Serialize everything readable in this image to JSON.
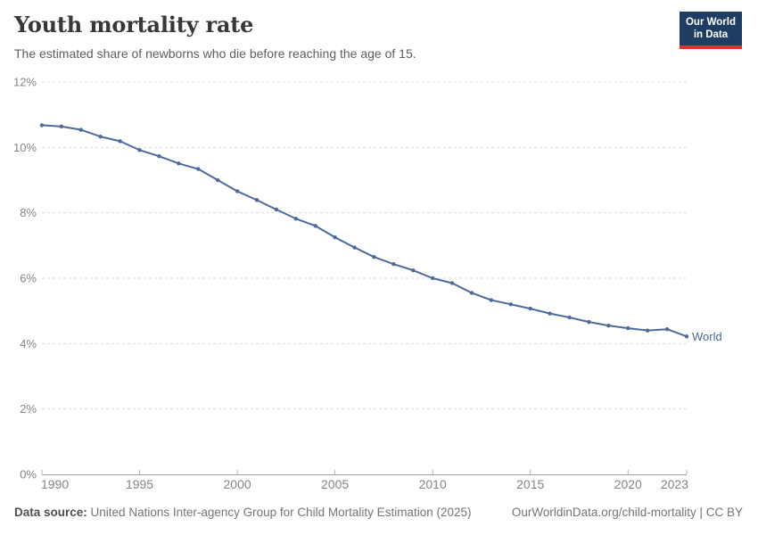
{
  "header": {
    "title": "Youth mortality rate",
    "subtitle": "The estimated share of newborns who die before reaching the age of 15.",
    "logo": {
      "line1": "Our World",
      "line2": "in Data",
      "bg_color": "#1d3d63",
      "accent_color": "#d9362f"
    }
  },
  "chart_data": {
    "type": "line",
    "title": "Youth mortality rate",
    "subtitle": "The estimated share of newborns who die before reaching the age of 15.",
    "xlabel": "",
    "ylabel": "",
    "grid": "horizontal-dashed",
    "legend_position": "end-of-line-label",
    "xlim": [
      1990,
      2023
    ],
    "ylim": [
      0,
      12
    ],
    "xticks": [
      1990,
      1995,
      2000,
      2005,
      2010,
      2015,
      2020,
      2023
    ],
    "yticks": [
      0,
      2,
      4,
      6,
      8,
      10,
      12
    ],
    "ytick_labels": [
      "0%",
      "2%",
      "4%",
      "6%",
      "8%",
      "10%",
      "12%"
    ],
    "x": [
      1990,
      1991,
      1992,
      1993,
      1994,
      1995,
      1996,
      1997,
      1998,
      1999,
      2000,
      2001,
      2002,
      2003,
      2004,
      2005,
      2006,
      2007,
      2008,
      2009,
      2010,
      2011,
      2012,
      2013,
      2014,
      2015,
      2016,
      2017,
      2018,
      2019,
      2020,
      2021,
      2022,
      2023
    ],
    "series": [
      {
        "name": "World",
        "color": "#4C6A9C",
        "values": [
          10.68,
          10.64,
          10.54,
          10.33,
          10.19,
          9.92,
          9.73,
          9.51,
          9.34,
          9.0,
          8.66,
          8.39,
          8.1,
          7.82,
          7.6,
          7.25,
          6.94,
          6.65,
          6.43,
          6.24,
          6.0,
          5.85,
          5.55,
          5.33,
          5.2,
          5.07,
          4.92,
          4.8,
          4.66,
          4.55,
          4.47,
          4.4,
          4.44,
          4.22
        ]
      }
    ]
  },
  "footer": {
    "source_label": "Data source:",
    "source_text": "United Nations Inter-agency Group for Child Mortality Estimation (2025)",
    "link_text": "OurWorldinData.org/child-mortality | CC BY"
  },
  "colors": {
    "line": "#4C6A9C",
    "entity_label": "#4C6A9C",
    "gridline": "#dcdcdc",
    "axis_line": "#a3a3a3",
    "tick": "#b5b5b5",
    "axis_text": "#858585",
    "title_text": "#383838",
    "subtitle_text": "#5e5e5e"
  }
}
